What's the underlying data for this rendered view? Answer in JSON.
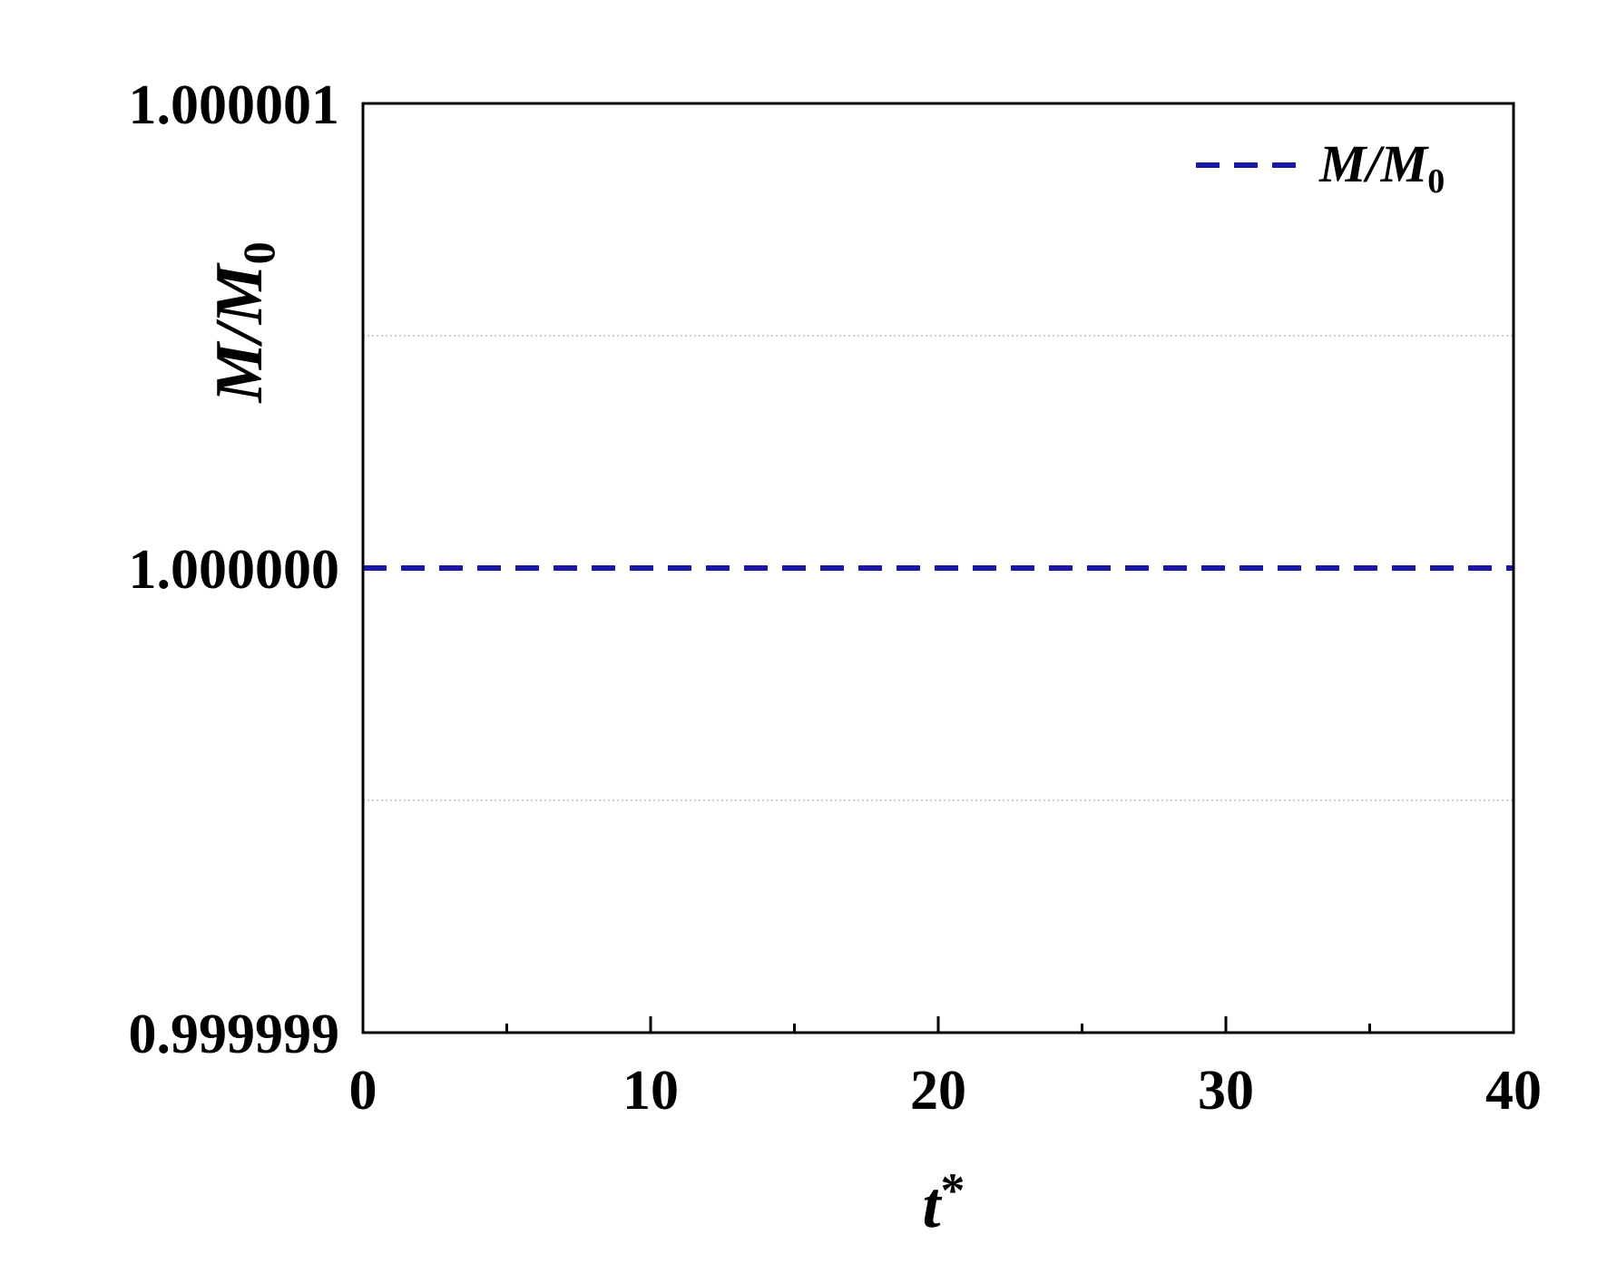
{
  "chart_data": {
    "type": "line",
    "xlabel": "t*",
    "xlabel_parts": {
      "base": "t",
      "sup": "*"
    },
    "ylabel": "M/M0",
    "ylabel_parts": {
      "base": "M/M",
      "sub": "0"
    },
    "xlim": [
      0,
      40
    ],
    "ylim": [
      0.999999,
      1.000001
    ],
    "xticks": [
      0,
      10,
      20,
      30,
      40
    ],
    "xtick_labels": [
      "0",
      "10",
      "20",
      "30",
      "40"
    ],
    "x_minor_ticks": [
      5,
      15,
      25,
      35
    ],
    "yticks": [
      0.999999,
      1.0,
      1.000001
    ],
    "ytick_labels": [
      "0.999999",
      "1.000000",
      "1.000001"
    ],
    "y_gridlines": [
      0.9999995,
      1.0000005
    ],
    "grid": "horizontal dotted at half steps",
    "legend_placement": "top-right",
    "series": [
      {
        "name": "M/M0",
        "name_parts": {
          "base": "M/M",
          "sub": "0"
        },
        "color": "#1a1aa6",
        "line_style": "dashed",
        "x": [
          0,
          5,
          10,
          15,
          20,
          25,
          30,
          35,
          40
        ],
        "y": [
          1.0,
          1.0,
          1.0,
          1.0,
          1.0,
          1.0,
          1.0,
          1.0,
          1.0
        ]
      }
    ]
  }
}
